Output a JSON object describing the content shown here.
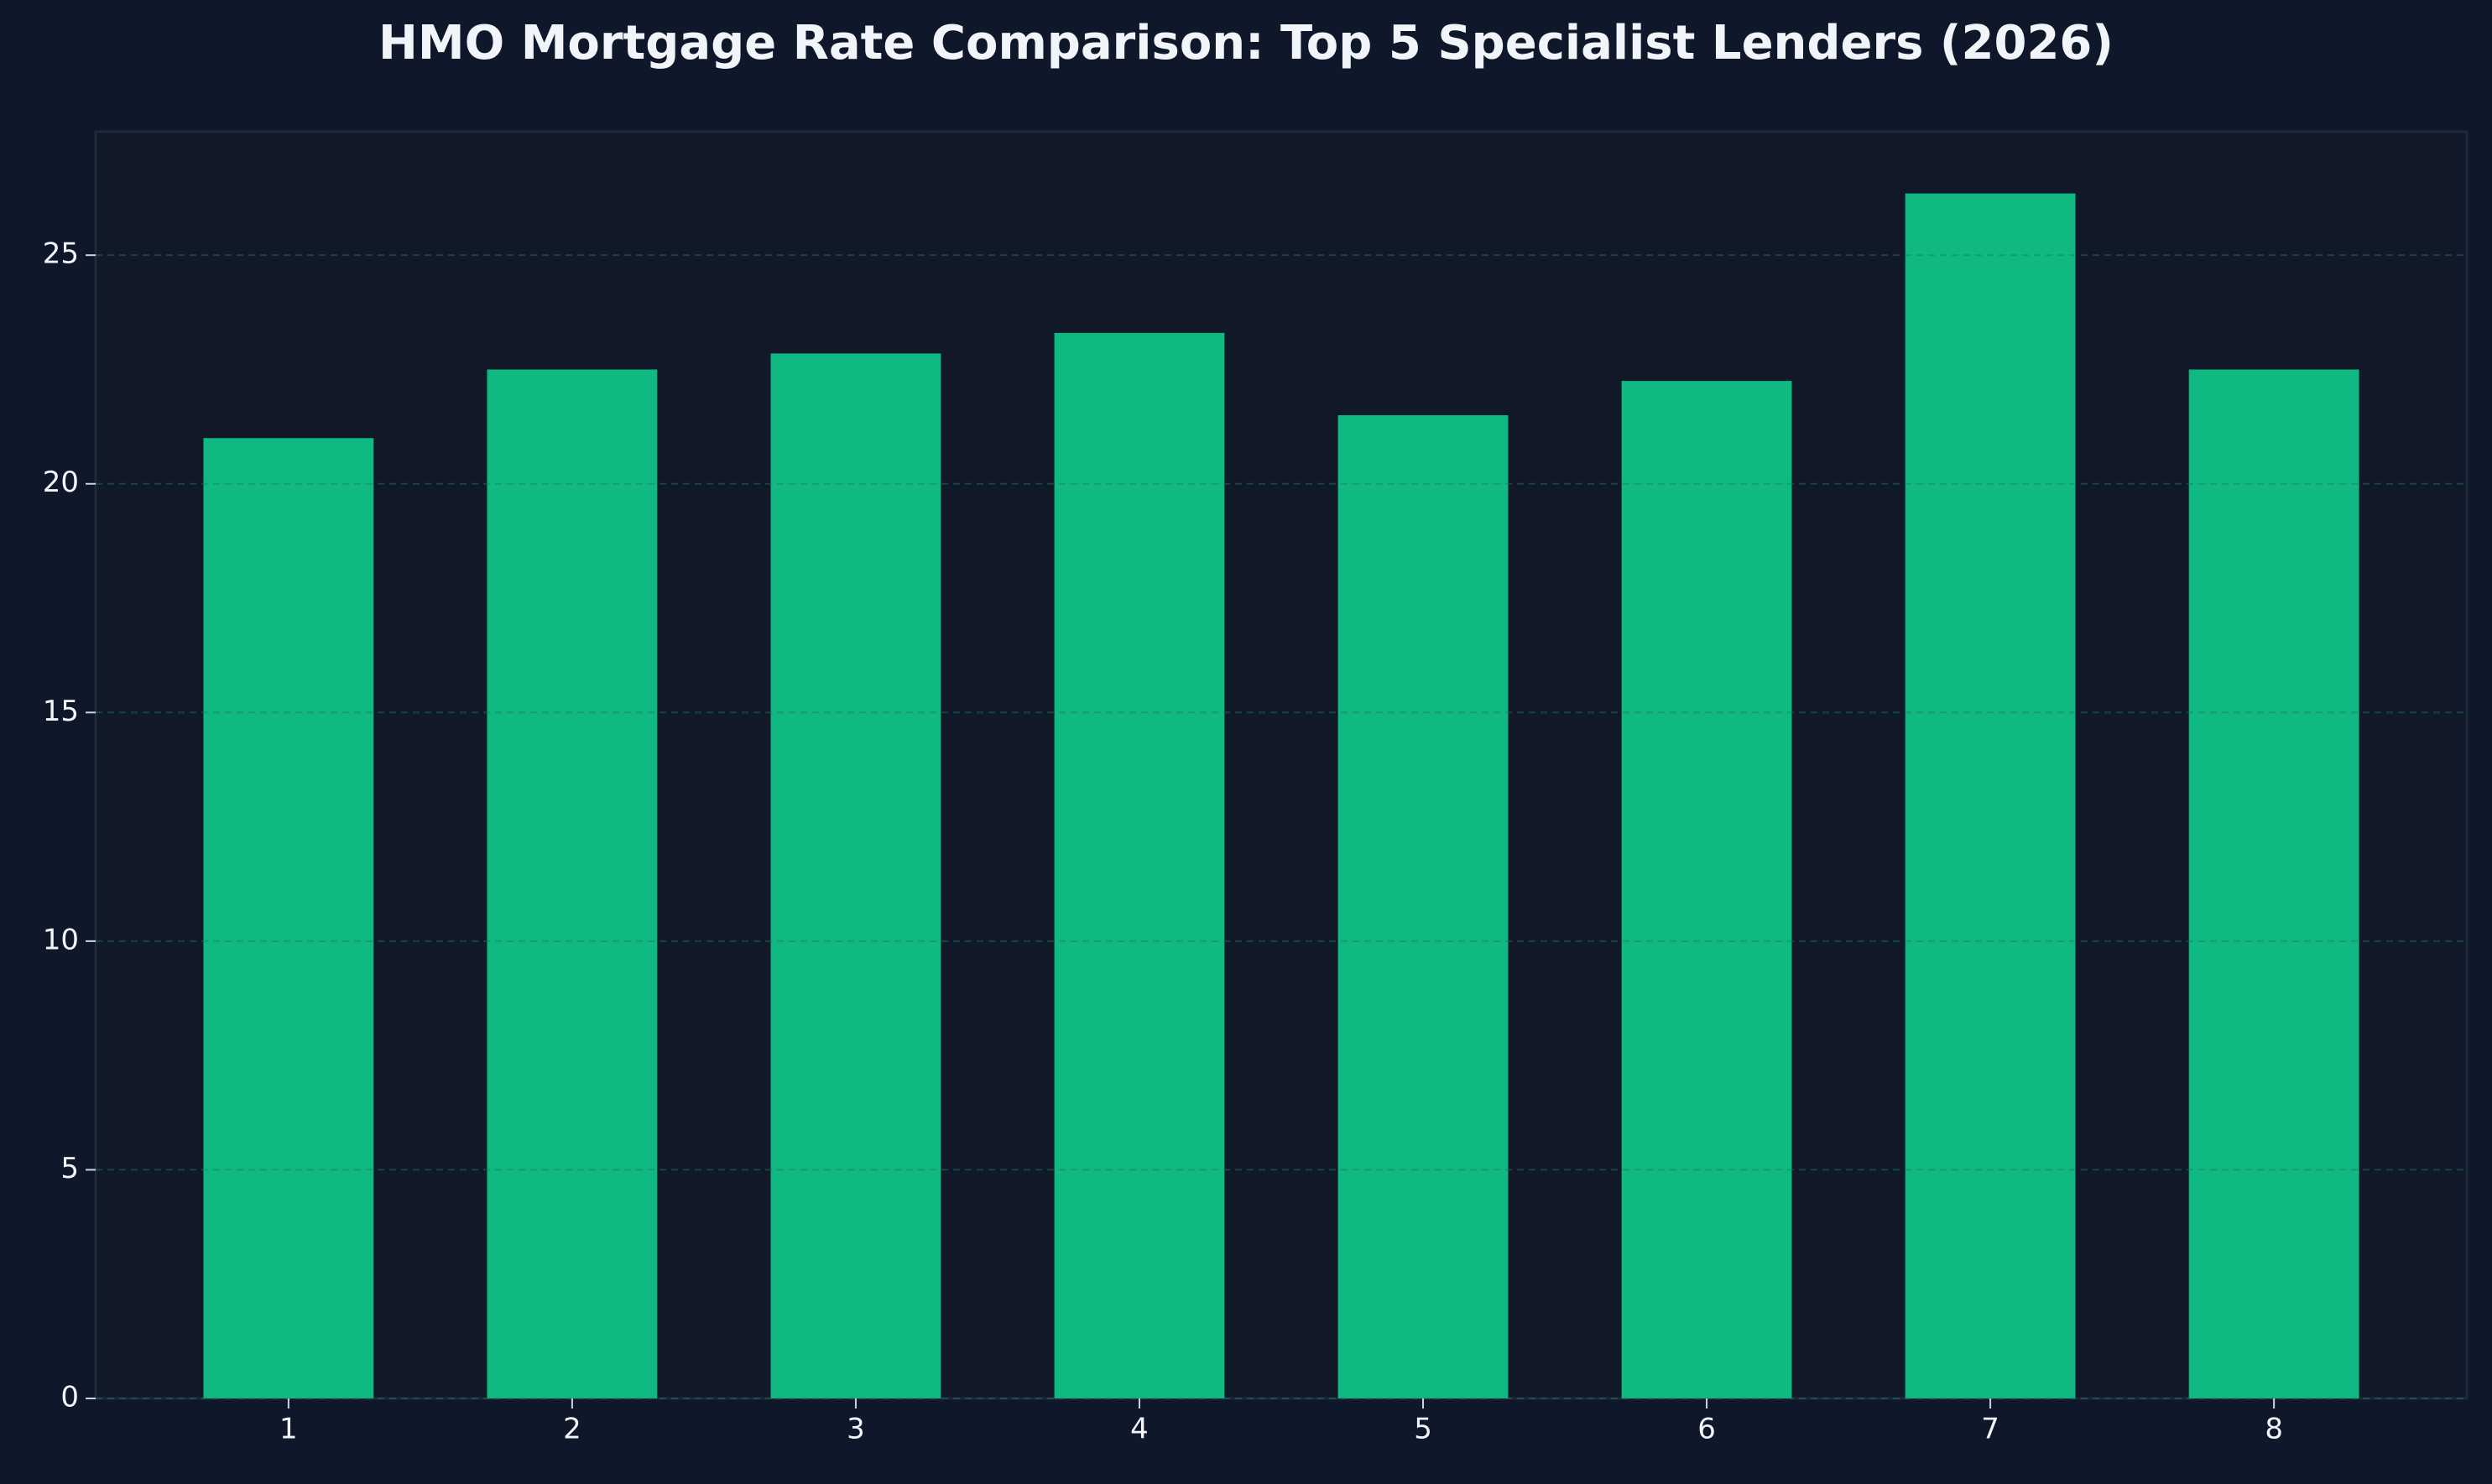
{
  "chart_data": {
    "type": "bar",
    "title": "HMO Mortgage Rate Comparison: Top 5 Specialist Lenders (2026)",
    "x": [
      1,
      2,
      3,
      4,
      5,
      6,
      7,
      8
    ],
    "values": [
      21.0,
      22.5,
      22.85,
      23.3,
      21.5,
      22.25,
      26.35,
      22.5
    ],
    "color": "#10b981",
    "xlim": [
      0.32,
      8.68
    ],
    "xticks": [
      1,
      2,
      3,
      4,
      5,
      6,
      7,
      8
    ],
    "ylim": [
      0,
      27.7
    ],
    "yticks": [
      0,
      5,
      10,
      15,
      20,
      25
    ],
    "grid": true
  }
}
